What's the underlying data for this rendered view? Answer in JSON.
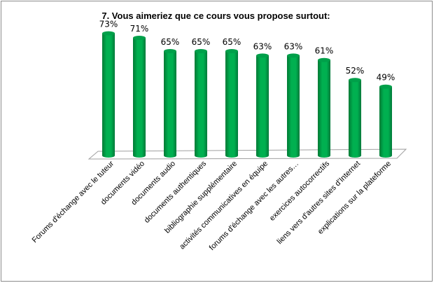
{
  "chart_data": {
    "type": "bar",
    "title": "7. Vous aimeriez que ce cours vous propose surtout:",
    "categories": [
      "Forums d'échange avec le tuteur",
      "documents vidéo",
      "documents audio",
      "documents authentiques",
      "bibliographie supplémentaire",
      "activités communicatives en équipe",
      "forums d'échange avec les autres…",
      "exercices autocorrectifs",
      "liens vers d'autres sites d'Internet",
      "explications sur la plateforme"
    ],
    "values": [
      73,
      71,
      65,
      65,
      65,
      63,
      63,
      61,
      52,
      49
    ],
    "value_labels": [
      "73%",
      "71%",
      "65%",
      "65%",
      "65%",
      "63%",
      "63%",
      "61%",
      "52%",
      "49%"
    ],
    "xlabel": "",
    "ylabel": "",
    "ylim": [
      18,
      80
    ],
    "grid": false,
    "legend": "none",
    "bar_color": "#00b050"
  }
}
